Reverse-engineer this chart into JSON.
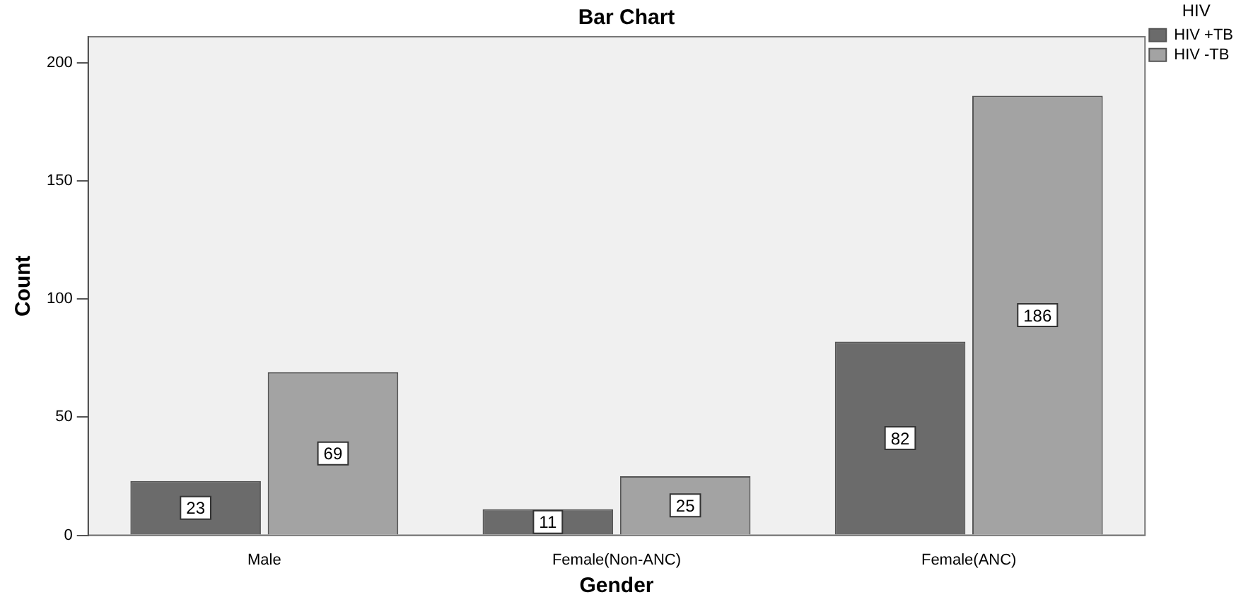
{
  "chart_data": {
    "type": "bar",
    "title": "Bar Chart",
    "xlabel": "Gender",
    "ylabel": "Count",
    "legend_title": "HIV",
    "categories": [
      "Male",
      "Female(Non-ANC)",
      "Female(ANC)"
    ],
    "series": [
      {
        "name": "HIV +TB",
        "color": "#6b6b6b",
        "values": [
          23,
          11,
          82
        ]
      },
      {
        "name": "HIV -TB",
        "color": "#a3a3a3",
        "values": [
          69,
          25,
          186
        ]
      }
    ],
    "ylim": [
      0,
      211
    ],
    "yticks": [
      0,
      50,
      100,
      150,
      200
    ],
    "grid": false,
    "legend": "top right",
    "data_labels": true
  }
}
